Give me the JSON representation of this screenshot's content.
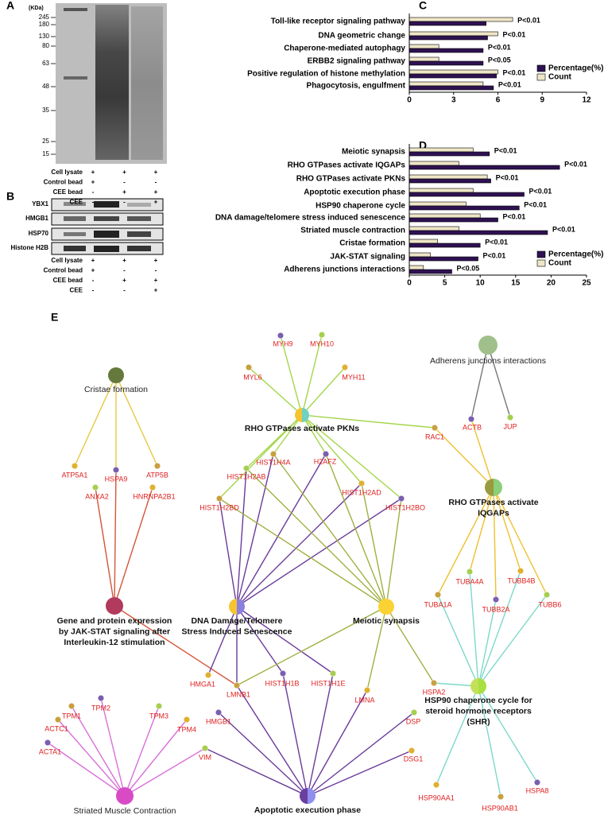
{
  "panel_labels": [
    "A",
    "B",
    "C",
    "D",
    "E"
  ],
  "gel": {
    "unit": "(KDa)",
    "markers": [
      245,
      180,
      130,
      80,
      63,
      48,
      35,
      25,
      15
    ],
    "conditions": [
      {
        "name": "Cell lysate",
        "signs": [
          "+",
          "+",
          "+"
        ]
      },
      {
        "name": "Control bead",
        "signs": [
          "+",
          "-",
          "-"
        ]
      },
      {
        "name": "CEE bead",
        "signs": [
          "-",
          "+",
          "+"
        ]
      },
      {
        "name": "CEE",
        "signs": [
          "-",
          "-",
          "+"
        ]
      }
    ]
  },
  "western": {
    "proteins": [
      "YBX1",
      "HMGB1",
      "HSP70",
      "Histone H2B"
    ],
    "conditions": [
      {
        "name": "Cell lysate",
        "signs": [
          "+",
          "+",
          "+"
        ]
      },
      {
        "name": "Control bead",
        "signs": [
          "+",
          "-",
          "-"
        ]
      },
      {
        "name": "CEE bead",
        "signs": [
          "-",
          "+",
          "+"
        ]
      },
      {
        "name": "CEE",
        "signs": [
          "-",
          "-",
          "+"
        ]
      }
    ]
  },
  "chart_data": [
    {
      "type": "bar",
      "orientation": "horizontal",
      "categories": [
        "Toll-like receptor signaling pathway",
        "DNA geometric change",
        "Chaperone-mediated autophagy",
        "ERBB2 signaling pathway",
        "Positive regulation of histone methylation",
        "Phagocytosis, engulfment"
      ],
      "series": [
        {
          "name": "Percentage(%)",
          "color": "#2e1152",
          "values": [
            5.2,
            5.3,
            5,
            5,
            5.9,
            5.7
          ]
        },
        {
          "name": "Count",
          "color": "#efe6c8",
          "values": [
            7,
            6,
            2,
            2,
            6,
            5
          ]
        }
      ],
      "annotations": [
        "P<0.01",
        "P<0.01",
        "P<0.01",
        "P<0.05",
        "P<0.01",
        "P<0.01"
      ],
      "xlim": [
        0,
        12
      ],
      "xticks": [
        0,
        3,
        6,
        9,
        12
      ]
    },
    {
      "type": "bar",
      "orientation": "horizontal",
      "categories": [
        "Meiotic synapsis",
        "RHO GTPases activate IQGAPs",
        "RHO GTPases activate PKNs",
        "Apoptotic execution  phase",
        "HSP90 chaperone cycle",
        "DNA damage/telomere stress induced senescence",
        "Striated muscle contraction",
        "Cristae formation",
        "JAK-STAT signaling",
        "Adherens junctions interactions"
      ],
      "series": [
        {
          "name": "Percentage(%)",
          "color": "#2e1152",
          "values": [
            11.3,
            21.2,
            11.5,
            16.2,
            15.5,
            12.5,
            19.5,
            10,
            9.7,
            6
          ]
        },
        {
          "name": "Count",
          "color": "#efe6c8",
          "values": [
            9,
            7,
            11,
            9,
            8,
            10,
            7,
            4,
            3,
            2
          ]
        }
      ],
      "annotations": [
        "P<0.01",
        "P<0.01",
        "P<0.01",
        "P<0.01",
        "P<0.01",
        "P<0.01",
        "P<0.01",
        "P<0.01",
        "P<0.01",
        "P<0.05"
      ],
      "xlim": [
        0,
        25
      ],
      "xticks": [
        0,
        5,
        10,
        15,
        20,
        25
      ]
    }
  ],
  "network": {
    "pathways": [
      {
        "lines": [
          "Cristae formation"
        ]
      },
      {
        "lines": [
          "Adherens junctions interactions"
        ]
      },
      {
        "lines": [
          "RHO GTPases activate PKNs"
        ]
      },
      {
        "lines": [
          "RHO GTPases activate",
          "IQGAPs"
        ]
      },
      {
        "lines": [
          "Gene and protein expression",
          "by JAK-STAT signaling after",
          "Interleukin-12 stimulation"
        ]
      },
      {
        "lines": [
          "DNA Damage/Telomere",
          "Stress Induced Senescence"
        ]
      },
      {
        "lines": [
          "Meiotic synapsis"
        ]
      },
      {
        "lines": [
          "HSP90 chaperone cycle for",
          "steroid hormone receptors",
          "(SHR)"
        ]
      },
      {
        "lines": [
          "Striated Muscle Contraction"
        ]
      },
      {
        "lines": [
          "Apoptotic execution  phase"
        ]
      }
    ],
    "genes": [
      "MYL6",
      "MYH9",
      "MYH10",
      "MYH11",
      "RAC1",
      "ACTB",
      "JUP",
      "ATP5A1",
      "ATP5B",
      "HSPA9",
      "ANXA2",
      "HNRNPA2B1",
      "HIST1H4A",
      "H2AFZ",
      "HIST1H2AB",
      "HIST1H2AD",
      "HIST1H2BD",
      "HIST1H2BO",
      "TUBA4A",
      "TUBB4B",
      "TUBA1A",
      "TUBB2A",
      "TUBB6",
      "HMGA1",
      "LMNB1",
      "HIST1H1B",
      "HIST1H1E",
      "LMNA",
      "HSPA2",
      "HMGB1",
      "DSP",
      "DSG1",
      "TPM1",
      "TPM2",
      "TPM3",
      "TPM4",
      "ACTC1",
      "ACTA1",
      "VIM",
      "HSP90AA1",
      "HSP90AB1",
      "HSPA8"
    ]
  }
}
